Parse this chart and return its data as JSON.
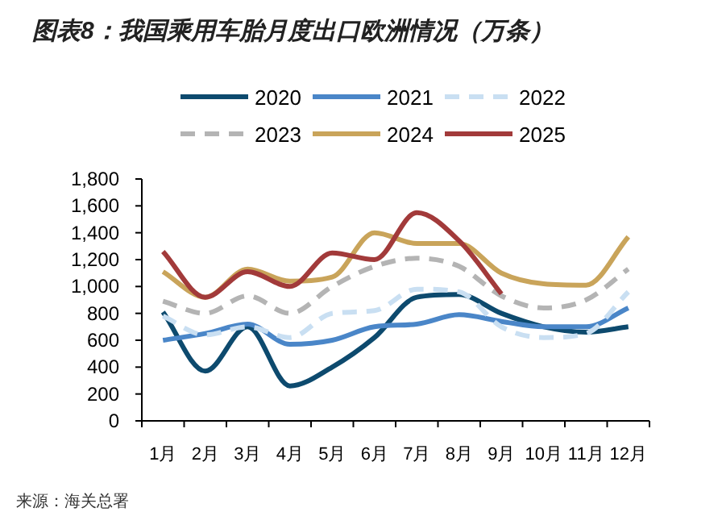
{
  "chart_data": {
    "type": "line",
    "title": "图表8：我国乘用车胎月度出口欧洲情况（万条）",
    "categories": [
      "1月",
      "2月",
      "3月",
      "4月",
      "5月",
      "6月",
      "7月",
      "8月",
      "9月",
      "10月",
      "11月",
      "12月"
    ],
    "series": [
      {
        "name": "2020",
        "color": "#0d4a6e",
        "line_style": "solid",
        "values": [
          810,
          370,
          700,
          260,
          400,
          620,
          920,
          940,
          800,
          700,
          660,
          700
        ]
      },
      {
        "name": "2021",
        "color": "#4a86c8",
        "line_style": "solid",
        "values": [
          600,
          650,
          720,
          570,
          600,
          700,
          720,
          790,
          740,
          700,
          700,
          840
        ]
      },
      {
        "name": "2022",
        "color": "#c9dff2",
        "line_style": "dashed",
        "values": [
          780,
          640,
          700,
          620,
          800,
          820,
          980,
          960,
          700,
          620,
          650,
          960
        ]
      },
      {
        "name": "2023",
        "color": "#b4b4b4",
        "line_style": "dashed",
        "values": [
          890,
          800,
          930,
          800,
          1000,
          1150,
          1210,
          1150,
          930,
          840,
          900,
          1130
        ]
      },
      {
        "name": "2024",
        "color": "#c9a45a",
        "line_style": "solid",
        "values": [
          1110,
          920,
          1130,
          1040,
          1070,
          1400,
          1320,
          1320,
          1100,
          1020,
          1010,
          1370
        ]
      },
      {
        "name": "2025",
        "color": "#a23a3a",
        "line_style": "solid",
        "values": [
          1260,
          920,
          1110,
          1000,
          1250,
          1200,
          1550,
          1340,
          945,
          null,
          null,
          null
        ]
      }
    ],
    "ylim": [
      0,
      1800
    ],
    "yticks": [
      {
        "value": 0,
        "label": "0"
      },
      {
        "value": 200,
        "label": "200"
      },
      {
        "value": 400,
        "label": "400"
      },
      {
        "value": 600,
        "label": "600"
      },
      {
        "value": 800,
        "label": "800"
      },
      {
        "value": 1000,
        "label": "1,000"
      },
      {
        "value": 1200,
        "label": "1,200"
      },
      {
        "value": 1400,
        "label": "1,400"
      },
      {
        "value": 1600,
        "label": "1,600"
      },
      {
        "value": 1800,
        "label": "1,800"
      }
    ],
    "grid": false,
    "legend": "top",
    "marker": "none",
    "annotations": [
      "来源：海关总署"
    ]
  }
}
